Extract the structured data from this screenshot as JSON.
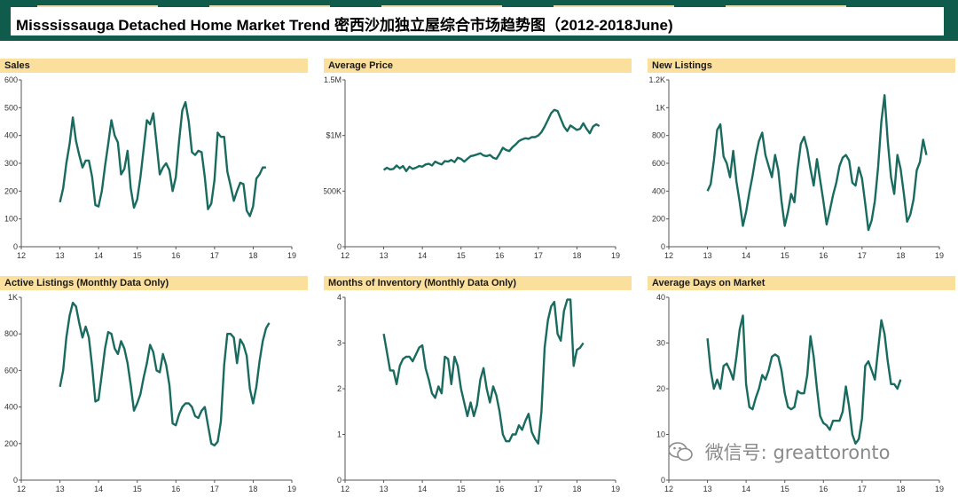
{
  "page": {
    "title": "Misssissauga Detached Home Market Trend 密西沙加独立屋综合市场趋势图（2012-2018June)",
    "watermark": "微信号: greattoronto"
  },
  "colors": {
    "header_band": "#0f5c4d",
    "panel_title_bg": "#fbdf9d",
    "line": "#1a6b5f",
    "axis": "#555555"
  },
  "chart_data": [
    {
      "id": "sales",
      "type": "line",
      "title": "Sales",
      "x_ticks": [
        "12",
        "13",
        "14",
        "15",
        "16",
        "17",
        "18",
        "19"
      ],
      "xlim": [
        12,
        19
      ],
      "ylim": [
        0,
        600
      ],
      "y_ticks": [
        0,
        100,
        200,
        300,
        400,
        500,
        600
      ],
      "y_tick_labels": [
        "0",
        "100",
        "200",
        "300",
        "400",
        "500",
        "600"
      ],
      "x_start": 13.0,
      "x_step": 0.0833,
      "values": [
        160,
        210,
        300,
        370,
        465,
        380,
        330,
        285,
        310,
        310,
        250,
        150,
        145,
        200,
        290,
        370,
        455,
        400,
        375,
        260,
        280,
        345,
        210,
        140,
        170,
        250,
        350,
        455,
        440,
        480,
        370,
        260,
        285,
        300,
        275,
        200,
        250,
        380,
        490,
        520,
        450,
        340,
        330,
        345,
        340,
        250,
        135,
        155,
        240,
        410,
        395,
        395,
        270,
        220,
        165,
        200,
        230,
        225,
        130,
        110,
        145,
        245,
        260,
        285,
        285
      ]
    },
    {
      "id": "avg-price",
      "type": "line",
      "title": "Average Price",
      "x_ticks": [
        "12",
        "13",
        "14",
        "15",
        "16",
        "17",
        "18",
        "19"
      ],
      "xlim": [
        12,
        19
      ],
      "ylim": [
        0,
        1500000
      ],
      "y_ticks": [
        0,
        500000,
        1000000,
        1500000
      ],
      "y_tick_labels": [
        "0",
        "$500K",
        "$1M",
        "$1.5M"
      ],
      "x_start": 13.0,
      "x_step": 0.0833,
      "values": [
        690000,
        710000,
        695000,
        700000,
        730000,
        705000,
        725000,
        680000,
        720000,
        700000,
        710000,
        725000,
        720000,
        740000,
        745000,
        730000,
        765000,
        750000,
        740000,
        770000,
        765000,
        780000,
        760000,
        800000,
        790000,
        765000,
        790000,
        815000,
        820000,
        830000,
        840000,
        820000,
        815000,
        825000,
        800000,
        790000,
        835000,
        890000,
        870000,
        860000,
        895000,
        920000,
        950000,
        965000,
        975000,
        970000,
        985000,
        985000,
        1000000,
        1030000,
        1080000,
        1140000,
        1200000,
        1230000,
        1220000,
        1150000,
        1080000,
        1040000,
        1090000,
        1070000,
        1050000,
        1060000,
        1110000,
        1060000,
        1020000,
        1080000,
        1100000,
        1085000
      ]
    },
    {
      "id": "new-listings",
      "type": "line",
      "title": "New Listings",
      "x_ticks": [
        "12",
        "13",
        "14",
        "15",
        "16",
        "17",
        "18",
        "19"
      ],
      "xlim": [
        12,
        19
      ],
      "ylim": [
        0,
        1200
      ],
      "y_ticks": [
        0,
        200,
        400,
        600,
        800,
        1000,
        1200
      ],
      "y_tick_labels": [
        "0",
        "200",
        "400",
        "600",
        "800",
        "1K",
        "1.2K"
      ],
      "x_start": 13.0,
      "x_step": 0.0833,
      "values": [
        400,
        450,
        620,
        840,
        880,
        650,
        600,
        500,
        690,
        470,
        320,
        150,
        250,
        390,
        510,
        650,
        760,
        820,
        660,
        580,
        500,
        660,
        550,
        330,
        150,
        250,
        380,
        320,
        560,
        740,
        790,
        700,
        560,
        440,
        630,
        480,
        330,
        160,
        260,
        370,
        460,
        580,
        640,
        660,
        620,
        460,
        440,
        570,
        490,
        310,
        120,
        190,
        330,
        570,
        900,
        1090,
        760,
        500,
        380,
        660,
        560,
        380,
        180,
        230,
        340,
        550,
        610,
        770,
        660
      ]
    },
    {
      "id": "active-listings",
      "type": "line",
      "title": "Active Listings (Monthly Data Only)",
      "x_ticks": [
        "12",
        "13",
        "14",
        "15",
        "16",
        "17",
        "18",
        "19"
      ],
      "xlim": [
        12,
        19
      ],
      "ylim": [
        0,
        1000
      ],
      "y_ticks": [
        0,
        200,
        400,
        600,
        800,
        1000
      ],
      "y_tick_labels": [
        "0",
        "200",
        "400",
        "600",
        "800",
        "1K"
      ],
      "x_start": 13.0,
      "x_step": 0.0833,
      "values": [
        510,
        600,
        780,
        900,
        970,
        950,
        860,
        780,
        840,
        780,
        620,
        430,
        440,
        580,
        720,
        810,
        800,
        720,
        690,
        760,
        720,
        640,
        520,
        380,
        420,
        470,
        560,
        640,
        740,
        700,
        600,
        590,
        690,
        630,
        520,
        310,
        300,
        360,
        400,
        420,
        420,
        400,
        350,
        340,
        380,
        400,
        300,
        200,
        190,
        210,
        320,
        630,
        800,
        800,
        780,
        640,
        770,
        740,
        680,
        500,
        420,
        510,
        650,
        760,
        830,
        860
      ]
    },
    {
      "id": "months-inventory",
      "type": "line",
      "title": "Months of Inventory (Monthly Data Only)",
      "x_ticks": [
        "12",
        "13",
        "14",
        "15",
        "16",
        "17",
        "18",
        "19"
      ],
      "xlim": [
        12,
        19
      ],
      "ylim": [
        0,
        4
      ],
      "y_ticks": [
        0,
        1,
        2,
        3,
        4
      ],
      "y_tick_labels": [
        "0",
        "1",
        "2",
        "3",
        "4"
      ],
      "x_start": 13.0,
      "x_step": 0.0833,
      "values": [
        3.2,
        2.8,
        2.4,
        2.4,
        2.1,
        2.5,
        2.65,
        2.7,
        2.7,
        2.6,
        2.75,
        2.9,
        2.95,
        2.45,
        2.2,
        1.9,
        1.8,
        2.05,
        1.9,
        2.7,
        2.65,
        2.1,
        2.7,
        2.5,
        2.0,
        1.7,
        1.4,
        1.7,
        1.4,
        1.65,
        2.2,
        2.45,
        2.0,
        1.7,
        2.05,
        1.85,
        1.5,
        1.0,
        0.85,
        0.85,
        1.0,
        1.0,
        1.2,
        1.1,
        1.3,
        1.45,
        1.05,
        0.9,
        0.8,
        1.5,
        2.9,
        3.5,
        3.8,
        3.9,
        3.2,
        3.05,
        3.7,
        3.95,
        3.95,
        2.5,
        2.85,
        2.9,
        3.0
      ]
    },
    {
      "id": "avg-days",
      "type": "line",
      "title": "Average Days on Market",
      "x_ticks": [
        "12",
        "13",
        "14",
        "15",
        "16",
        "17",
        "18",
        "19"
      ],
      "xlim": [
        12,
        19
      ],
      "ylim": [
        0,
        40
      ],
      "y_ticks": [
        0,
        10,
        20,
        30,
        40
      ],
      "y_tick_labels": [
        "0",
        "10",
        "20",
        "30",
        "40"
      ],
      "x_start": 13.0,
      "x_step": 0.0833,
      "values": [
        31,
        24,
        20,
        22,
        20,
        25,
        25.5,
        24,
        22,
        27,
        33,
        36,
        21,
        16,
        15.5,
        18,
        20,
        23,
        22,
        24,
        27,
        27.5,
        27,
        24,
        19,
        16,
        15.5,
        16,
        19.5,
        19,
        19,
        23,
        31.5,
        27,
        20,
        14,
        12.5,
        12,
        11,
        13,
        13,
        13,
        15,
        20.5,
        16,
        10,
        8,
        9,
        13.5,
        25,
        26,
        24,
        22,
        28.5,
        35,
        32,
        26,
        21,
        21,
        20,
        22
      ]
    }
  ]
}
